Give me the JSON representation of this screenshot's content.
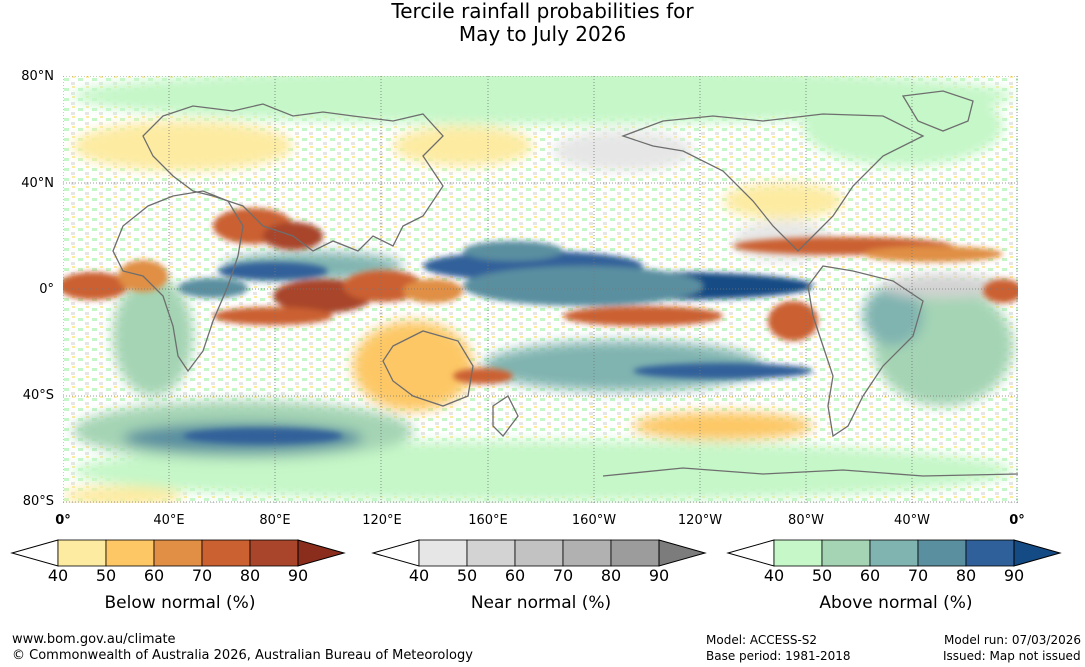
{
  "title": {
    "line1": "Tercile rainfall probabilities for",
    "line2": "May to July 2026"
  },
  "map": {
    "lat_labels": [
      "80°N",
      "40°N",
      "0°",
      "40°S",
      "80°S"
    ],
    "lon_labels": [
      "0°",
      "40°E",
      "80°E",
      "120°E",
      "160°E",
      "160°W",
      "120°W",
      "80°W",
      "40°W",
      "0°"
    ]
  },
  "legends": [
    {
      "title": "Below normal (%)",
      "ticks": [
        "40",
        "50",
        "60",
        "70",
        "80",
        "90"
      ],
      "colors": [
        "#ffffff",
        "#fdeba1",
        "#fdc765",
        "#e08f45",
        "#cb6131",
        "#a8452a",
        "#8b2d1c"
      ]
    },
    {
      "title": "Near normal (%)",
      "ticks": [
        "40",
        "50",
        "60",
        "70",
        "80",
        "90"
      ],
      "colors": [
        "#ffffff",
        "#e6e6e6",
        "#d3d3d3",
        "#c2c2c2",
        "#b1b1b1",
        "#9c9c9c",
        "#7c7c7c"
      ]
    },
    {
      "title": "Above normal (%)",
      "ticks": [
        "40",
        "50",
        "60",
        "70",
        "80",
        "90"
      ],
      "colors": [
        "#ffffff",
        "#c5f7c8",
        "#a4d4b4",
        "#80b4b0",
        "#5a8fa0",
        "#30609a",
        "#154b85"
      ]
    }
  ],
  "colors": {
    "land_outline": "#6e6e6e",
    "grid": "#777777"
  },
  "footer": {
    "url": "www.bom.gov.au/climate",
    "copyright": "© Commonwealth of Australia 2026, Australian Bureau of Meteorology",
    "model": "Model: ACCESS-S2",
    "base_period": "Base period: 1981-2018",
    "model_run": "Model run: 07/03/2026",
    "issued": "Issued: Map not issued"
  }
}
